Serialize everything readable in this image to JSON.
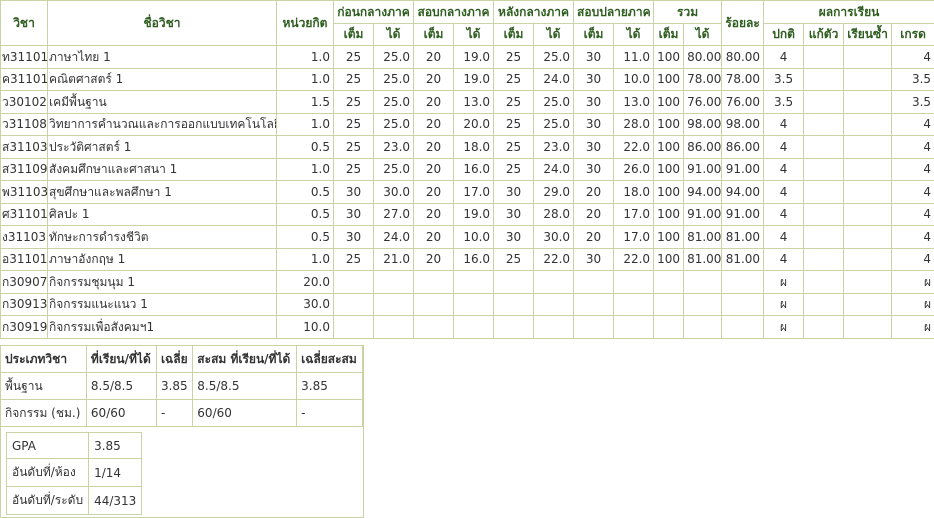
{
  "headers": {
    "code": "วิชา",
    "name": "ชื่อวิชา",
    "credit": "หน่วยกิต",
    "before_mid": "ก่อนกลางภาค",
    "mid_exam": "สอบกลางภาค",
    "after_mid": "หลังกลางภาค",
    "final_exam": "สอบปลายภาค",
    "total": "รวม",
    "percent": "ร้อยละ",
    "result": "ผลการเรียน",
    "full": "เต็ม",
    "got": "ได้",
    "normal": "ปกติ",
    "fix": "แก้ตัว",
    "repeat": "เรียนซ้ำ",
    "grade": "เกรด"
  },
  "rows": [
    {
      "code": "ท31101",
      "name": "ภาษาไทย 1",
      "credit": "1.0",
      "b_full": "25",
      "b_got": "25.0",
      "m_full": "20",
      "m_got": "19.0",
      "a_full": "25",
      "a_got": "25.0",
      "f_full": "30",
      "f_got": "11.0",
      "t_full": "100",
      "t_got": "80.00",
      "pct": "80.00",
      "normal": "4",
      "fix": "",
      "repeat": "",
      "grade": "4"
    },
    {
      "code": "ค31101",
      "name": "คณิตศาสตร์ 1",
      "credit": "1.0",
      "b_full": "25",
      "b_got": "25.0",
      "m_full": "20",
      "m_got": "19.0",
      "a_full": "25",
      "a_got": "24.0",
      "f_full": "30",
      "f_got": "10.0",
      "t_full": "100",
      "t_got": "78.00",
      "pct": "78.00",
      "normal": "3.5",
      "fix": "",
      "repeat": "",
      "grade": "3.5"
    },
    {
      "code": "ว30102",
      "name": "เคมีพื้นฐาน",
      "credit": "1.5",
      "b_full": "25",
      "b_got": "25.0",
      "m_full": "20",
      "m_got": "13.0",
      "a_full": "25",
      "a_got": "25.0",
      "f_full": "30",
      "f_got": "13.0",
      "t_full": "100",
      "t_got": "76.00",
      "pct": "76.00",
      "normal": "3.5",
      "fix": "",
      "repeat": "",
      "grade": "3.5"
    },
    {
      "code": "ว31108",
      "name": "วิทยาการคำนวณและการออกแบบเทคโนโลยี 1",
      "credit": "1.0",
      "b_full": "25",
      "b_got": "25.0",
      "m_full": "20",
      "m_got": "20.0",
      "a_full": "25",
      "a_got": "25.0",
      "f_full": "30",
      "f_got": "28.0",
      "t_full": "100",
      "t_got": "98.00",
      "pct": "98.00",
      "normal": "4",
      "fix": "",
      "repeat": "",
      "grade": "4"
    },
    {
      "code": "ส31103",
      "name": "ประวัติศาสตร์ 1",
      "credit": "0.5",
      "b_full": "25",
      "b_got": "23.0",
      "m_full": "20",
      "m_got": "18.0",
      "a_full": "25",
      "a_got": "23.0",
      "f_full": "30",
      "f_got": "22.0",
      "t_full": "100",
      "t_got": "86.00",
      "pct": "86.00",
      "normal": "4",
      "fix": "",
      "repeat": "",
      "grade": "4"
    },
    {
      "code": "ส31109",
      "name": "สังคมศึกษาและศาสนา 1",
      "credit": "1.0",
      "b_full": "25",
      "b_got": "25.0",
      "m_full": "20",
      "m_got": "16.0",
      "a_full": "25",
      "a_got": "24.0",
      "f_full": "30",
      "f_got": "26.0",
      "t_full": "100",
      "t_got": "91.00",
      "pct": "91.00",
      "normal": "4",
      "fix": "",
      "repeat": "",
      "grade": "4"
    },
    {
      "code": "พ31103",
      "name": "สุขศึกษาและพลศึกษา 1",
      "credit": "0.5",
      "b_full": "30",
      "b_got": "30.0",
      "m_full": "20",
      "m_got": "17.0",
      "a_full": "30",
      "a_got": "29.0",
      "f_full": "20",
      "f_got": "18.0",
      "t_full": "100",
      "t_got": "94.00",
      "pct": "94.00",
      "normal": "4",
      "fix": "",
      "repeat": "",
      "grade": "4"
    },
    {
      "code": "ศ31101",
      "name": "ศิลปะ 1",
      "credit": "0.5",
      "b_full": "30",
      "b_got": "27.0",
      "m_full": "20",
      "m_got": "19.0",
      "a_full": "30",
      "a_got": "28.0",
      "f_full": "20",
      "f_got": "17.0",
      "t_full": "100",
      "t_got": "91.00",
      "pct": "91.00",
      "normal": "4",
      "fix": "",
      "repeat": "",
      "grade": "4"
    },
    {
      "code": "ง31103",
      "name": "ทักษะการดำรงชีวิต",
      "credit": "0.5",
      "b_full": "30",
      "b_got": "24.0",
      "m_full": "20",
      "m_got": "10.0",
      "a_full": "30",
      "a_got": "30.0",
      "f_full": "20",
      "f_got": "17.0",
      "t_full": "100",
      "t_got": "81.00",
      "pct": "81.00",
      "normal": "4",
      "fix": "",
      "repeat": "",
      "grade": "4"
    },
    {
      "code": "อ31101",
      "name": "ภาษาอังกฤษ 1",
      "credit": "1.0",
      "b_full": "25",
      "b_got": "21.0",
      "m_full": "20",
      "m_got": "16.0",
      "a_full": "25",
      "a_got": "22.0",
      "f_full": "30",
      "f_got": "22.0",
      "t_full": "100",
      "t_got": "81.00",
      "pct": "81.00",
      "normal": "4",
      "fix": "",
      "repeat": "",
      "grade": "4"
    },
    {
      "code": "ก30907",
      "name": "กิจกรรมชุมนุม 1",
      "credit": "20.0",
      "b_full": "",
      "b_got": "",
      "m_full": "",
      "m_got": "",
      "a_full": "",
      "a_got": "",
      "f_full": "",
      "f_got": "",
      "t_full": "",
      "t_got": "",
      "pct": "",
      "normal": "ผ",
      "fix": "",
      "repeat": "",
      "grade": "ผ"
    },
    {
      "code": "ก30913",
      "name": "กิจกรรมแนะแนว 1",
      "credit": "30.0",
      "b_full": "",
      "b_got": "",
      "m_full": "",
      "m_got": "",
      "a_full": "",
      "a_got": "",
      "f_full": "",
      "f_got": "",
      "t_full": "",
      "t_got": "",
      "pct": "",
      "normal": "ผ",
      "fix": "",
      "repeat": "",
      "grade": "ผ"
    },
    {
      "code": "ก30919",
      "name": "กิจกรรมเพื่อสังคมฯ1",
      "credit": "10.0",
      "b_full": "",
      "b_got": "",
      "m_full": "",
      "m_got": "",
      "a_full": "",
      "a_got": "",
      "f_full": "",
      "f_got": "",
      "t_full": "",
      "t_got": "",
      "pct": "",
      "normal": "ผ",
      "fix": "",
      "repeat": "",
      "grade": "ผ"
    }
  ],
  "summary": {
    "headers": [
      "ประเภทวิชา",
      "ที่เรียน/ที่ได้",
      "เฉลี่ย",
      "สะสม ที่เรียน/ที่ได้",
      "เฉลี่ยสะสม"
    ],
    "rows": [
      [
        "พื้นฐาน",
        "8.5/8.5",
        "3.85",
        "8.5/8.5",
        "3.85"
      ],
      [
        "กิจกรรม (ชม.)",
        "60/60",
        "-",
        "60/60",
        "-"
      ]
    ]
  },
  "gpa": [
    {
      "label": "GPA",
      "value": "3.85"
    },
    {
      "label": "อันดับที่/ห้อง",
      "value": "1/14"
    },
    {
      "label": "อันดับที่/ระดับ",
      "value": "44/313"
    }
  ]
}
